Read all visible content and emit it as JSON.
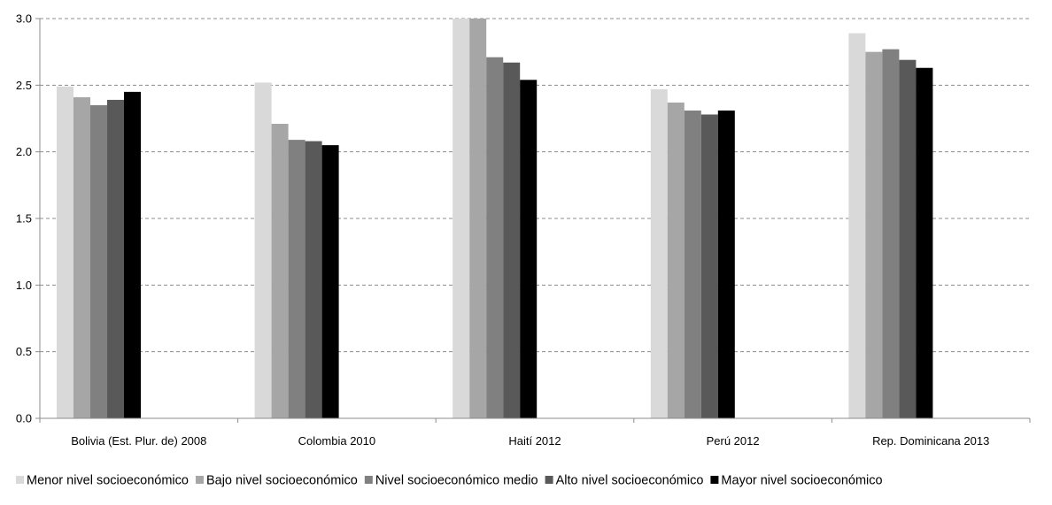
{
  "chart_data": {
    "type": "bar",
    "categories": [
      "Bolivia (Est. Plur. de) 2008",
      "Colombia 2010",
      "Haití 2012",
      "Perú 2012",
      "Rep. Dominicana 2013"
    ],
    "series": [
      {
        "name": "Menor nivel socioeconómico",
        "color": "#d9d9d9",
        "values": [
          2.49,
          2.52,
          3.0,
          2.47,
          2.89
        ]
      },
      {
        "name": "Bajo nivel socioeconómico",
        "color": "#a6a6a6",
        "values": [
          2.41,
          2.21,
          3.0,
          2.37,
          2.75
        ]
      },
      {
        "name": "Nivel socioeconómico medio",
        "color": "#808080",
        "values": [
          2.35,
          2.09,
          2.71,
          2.31,
          2.77
        ]
      },
      {
        "name": "Alto nivel socioeconómico",
        "color": "#595959",
        "values": [
          2.39,
          2.08,
          2.67,
          2.28,
          2.69
        ]
      },
      {
        "name": "Mayor nivel socioeconómico",
        "color": "#000000",
        "values": [
          2.45,
          2.05,
          2.54,
          2.31,
          2.63
        ]
      }
    ],
    "yticks": [
      "0.0",
      "0.5",
      "1.0",
      "1.5",
      "2.0",
      "2.5",
      "3.0"
    ],
    "ylim": [
      0,
      3.0
    ],
    "grid": true,
    "legend_position": "bottom"
  }
}
